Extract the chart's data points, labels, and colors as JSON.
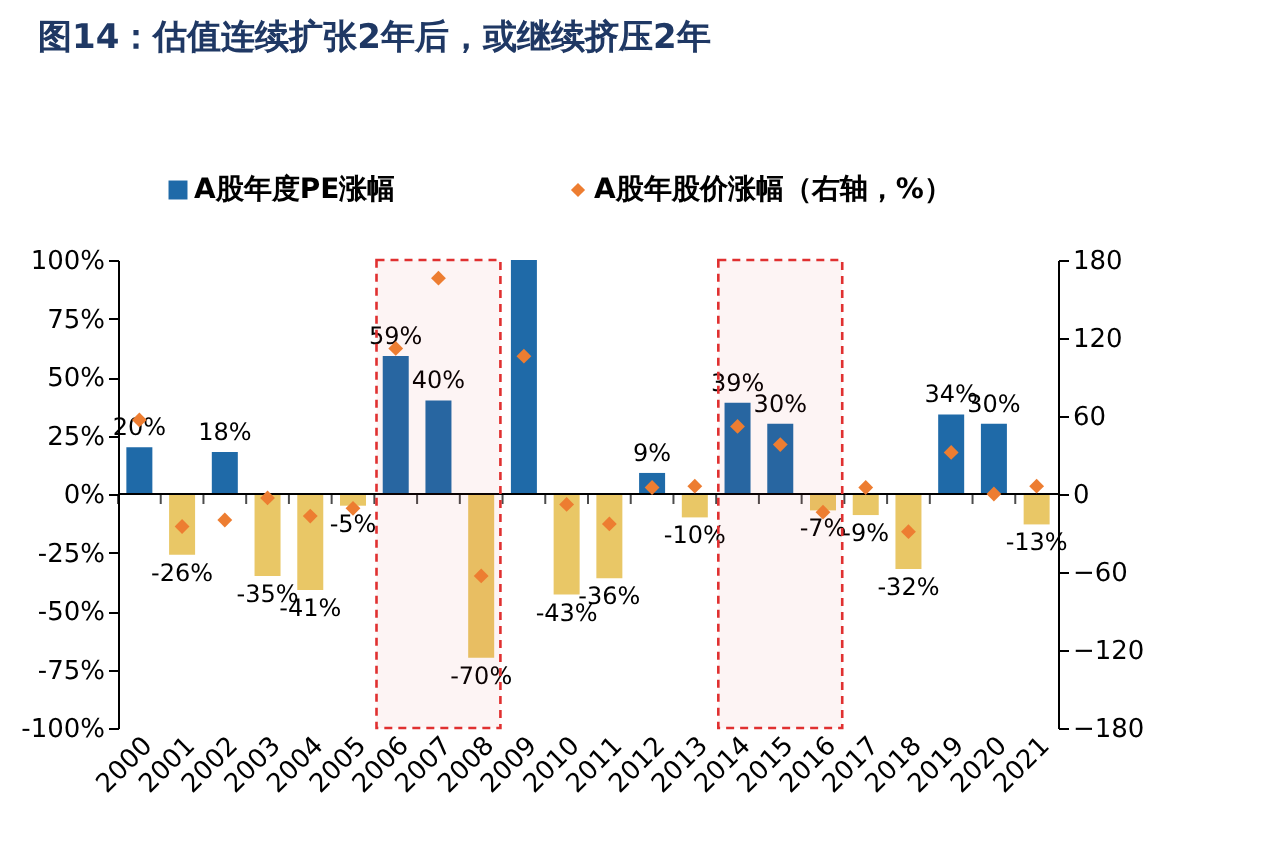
{
  "chart_data": {
    "type": "bar",
    "title": "图14：估值连续扩张2年后，或继续挤压2年",
    "categories": [
      "2000",
      "2001",
      "2002",
      "2003",
      "2004",
      "2005",
      "2006",
      "2007",
      "2008",
      "2009",
      "2010",
      "2011",
      "2012",
      "2013",
      "2014",
      "2015",
      "2016",
      "2017",
      "2018",
      "2019",
      "2020",
      "2021"
    ],
    "series": [
      {
        "name": "A股年度PE涨幅",
        "color": "#1f6aa8",
        "colors": [
          "#1f6aa8",
          "#e9c766",
          "#1f6aa8",
          "#e9c766",
          "#e9c766",
          "#e9c766",
          "#1f6aa8",
          "#1f6aa8",
          "#e9c766",
          "#1f6aa8",
          "#e9c766",
          "#e9c766",
          "#1f6aa8",
          "#e9c766",
          "#1f6aa8",
          "#1f6aa8",
          "#e9c766",
          "#e9c766",
          "#e9c766",
          "#1f6aa8",
          "#1f6aa8",
          "#e9c766"
        ],
        "values": [
          20,
          -26,
          18,
          -35,
          -41,
          -5,
          59,
          40,
          -70,
          100,
          -43,
          -36,
          9,
          -10,
          39,
          30,
          -7,
          -9,
          -32,
          34,
          30,
          -13
        ],
        "value_labels": [
          "20%",
          "-26%",
          "18%",
          "-35%",
          "-41%",
          "-5%",
          "59%",
          "40%",
          "-70%",
          null,
          "-43%",
          "-36%",
          "9%",
          "-10%",
          "39%",
          "30%",
          "-7%",
          "-9%",
          "-32%",
          "34%",
          "30%",
          "-13%"
        ]
      },
      {
        "name": "A股年股价涨幅（右轴，%）",
        "type": "scatter",
        "axis": "y2",
        "marker": "diamond",
        "color": "#ed7d31",
        "values": [
          57,
          -25,
          -20,
          -3,
          -17,
          -11,
          112,
          166,
          -63,
          106,
          -8,
          -23,
          5,
          6,
          52,
          38,
          -14,
          5,
          -29,
          32,
          0,
          6
        ]
      }
    ],
    "ylim": [
      -100,
      100
    ],
    "yticks": [
      {
        "value": -100,
        "label": "-100%"
      },
      {
        "value": -75,
        "label": "-75%"
      },
      {
        "value": -50,
        "label": "-50%"
      },
      {
        "value": -25,
        "label": "-25%"
      },
      {
        "value": 0,
        "label": "0%"
      },
      {
        "value": 25,
        "label": "25%"
      },
      {
        "value": 50,
        "label": "50%"
      },
      {
        "value": 75,
        "label": "75%"
      },
      {
        "value": 100,
        "label": "100%"
      }
    ],
    "y2lim": [
      -180,
      180
    ],
    "y2ticks": [
      -180,
      -120,
      -60,
      0,
      60,
      120,
      180
    ],
    "ref_lines": [
      {
        "axis": "y",
        "value": 0,
        "color": "#000000"
      }
    ],
    "bands": [
      {
        "axis": "x",
        "from": "2006",
        "to": "2008",
        "color": "#e03030"
      },
      {
        "axis": "x",
        "from": "2014",
        "to": "2016",
        "color": "#e03030"
      }
    ],
    "legend": "top",
    "grid": false
  }
}
